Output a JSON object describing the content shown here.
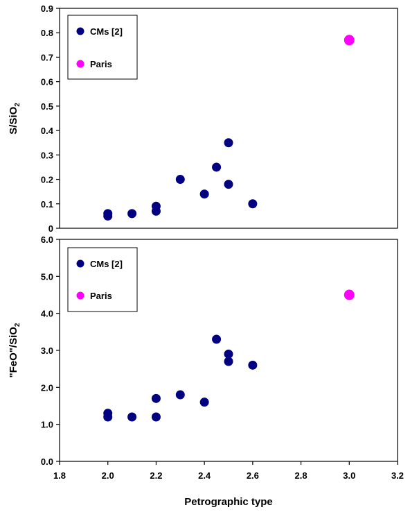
{
  "chart_data": [
    {
      "type": "scatter",
      "id": "top",
      "ylabel_main": "S/SiO",
      "ylabel_sub": "2",
      "xlim": [
        1.8,
        3.2
      ],
      "ylim": [
        0,
        0.9
      ],
      "y_ticks": [
        "0",
        "0.1",
        "0.2",
        "0.3",
        "0.4",
        "0.5",
        "0.6",
        "0.7",
        "0.8",
        "0.9"
      ],
      "y_tick_values": [
        0,
        0.1,
        0.2,
        0.3,
        0.4,
        0.5,
        0.6,
        0.7,
        0.8,
        0.9
      ],
      "legend": {
        "position": "top-left",
        "entries": [
          "CMs [2]",
          "Paris"
        ]
      },
      "series": [
        {
          "name": "CMs [2]",
          "color": "#000080",
          "points": [
            [
              2.0,
              0.06
            ],
            [
              2.0,
              0.05
            ],
            [
              2.1,
              0.06
            ],
            [
              2.2,
              0.09
            ],
            [
              2.2,
              0.07
            ],
            [
              2.3,
              0.2
            ],
            [
              2.4,
              0.14
            ],
            [
              2.45,
              0.25
            ],
            [
              2.5,
              0.35
            ],
            [
              2.5,
              0.18
            ],
            [
              2.6,
              0.1
            ]
          ]
        },
        {
          "name": "Paris",
          "color": "#ff00ff",
          "points": [
            [
              3.0,
              0.77
            ]
          ]
        }
      ]
    },
    {
      "type": "scatter",
      "id": "bottom",
      "ylabel_main": "\"FeO\"/SiO",
      "ylabel_sub": "2",
      "xlabel": "Petrographic type",
      "xlim": [
        1.8,
        3.2
      ],
      "ylim": [
        0,
        6.0
      ],
      "x_ticks": [
        "1.8",
        "2.0",
        "2.2",
        "2.4",
        "2.6",
        "2.8",
        "3.0",
        "3.2"
      ],
      "x_tick_values": [
        1.8,
        2.0,
        2.2,
        2.4,
        2.6,
        2.8,
        3.0,
        3.2
      ],
      "y_ticks": [
        "0.0",
        "1.0",
        "2.0",
        "3.0",
        "4.0",
        "5.0",
        "6.0"
      ],
      "y_tick_values": [
        0,
        1,
        2,
        3,
        4,
        5,
        6
      ],
      "legend": {
        "position": "top-left",
        "entries": [
          "CMs [2]",
          "Paris"
        ]
      },
      "series": [
        {
          "name": "CMs [2]",
          "color": "#000080",
          "points": [
            [
              2.0,
              1.3
            ],
            [
              2.0,
              1.2
            ],
            [
              2.1,
              1.2
            ],
            [
              2.2,
              1.7
            ],
            [
              2.2,
              1.2
            ],
            [
              2.3,
              1.8
            ],
            [
              2.4,
              1.6
            ],
            [
              2.45,
              3.3
            ],
            [
              2.5,
              2.9
            ],
            [
              2.5,
              2.7
            ],
            [
              2.6,
              2.6
            ]
          ]
        },
        {
          "name": "Paris",
          "color": "#ff00ff",
          "points": [
            [
              3.0,
              4.5
            ]
          ]
        }
      ]
    }
  ]
}
